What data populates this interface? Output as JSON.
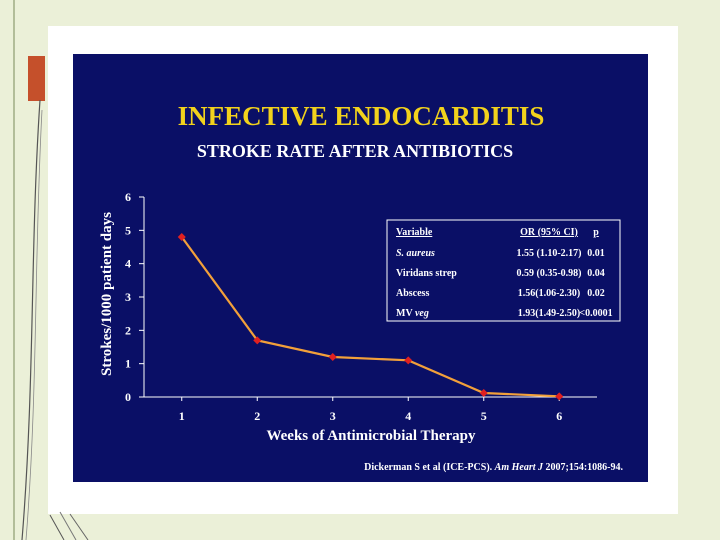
{
  "colors": {
    "slide_background": "#0a0f66",
    "title": "#f2d21c",
    "line": "#f2a03a",
    "point": "#e02020",
    "text": "#ffffff",
    "page_background": "#ebf0d8",
    "accent": "#c5502b"
  },
  "chart_data": {
    "type": "line",
    "title": "INFECTIVE ENDOCARDITIS",
    "subtitle": "STROKE RATE AFTER ANTIBIOTICS",
    "xlabel": "Weeks of Antimicrobial Therapy",
    "ylabel": "Strokes/1000 patient days",
    "x": [
      1,
      2,
      3,
      4,
      5,
      6
    ],
    "x_tick_labels": [
      "1",
      "2",
      "3",
      "4",
      "5",
      "6"
    ],
    "y_tick_labels": [
      "0",
      "1",
      "2",
      "3",
      "4",
      "5",
      "6"
    ],
    "xlim": [
      0.5,
      6.5
    ],
    "ylim": [
      0,
      6
    ],
    "grid": false,
    "series": [
      {
        "values": [
          4.8,
          1.7,
          1.2,
          1.1,
          0.12,
          0.02
        ]
      }
    ]
  },
  "table": {
    "headers": [
      "Variable",
      "OR (95% CI)",
      "p"
    ],
    "rows": [
      {
        "variable": "S. aureus",
        "or_ci": "1.55 (1.10-2.17)",
        "p": "0.01"
      },
      {
        "variable": "Viridans strep",
        "or_ci": "0.59 (0.35-0.98)",
        "p": "0.04"
      },
      {
        "variable": "Abscess",
        "or_ci": "1.56(1.06-2.30)",
        "p": "0.02"
      },
      {
        "variable_plain": "MV ",
        "variable_italic": "veg",
        "or_ci": "1.93(1.49-2.50)",
        "p": "<0.0001"
      }
    ]
  },
  "citation": {
    "authors": "Dickerman S et al (ICE-PCS). ",
    "journal": "Am Heart J",
    "details": " 2007;154:1086-94."
  }
}
